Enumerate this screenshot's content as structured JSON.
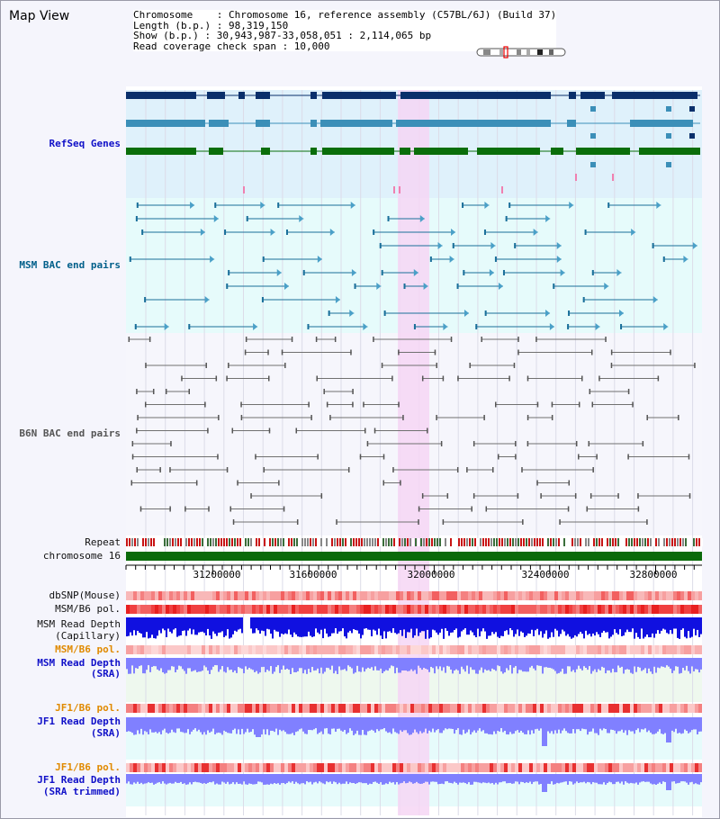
{
  "title": "Map View",
  "info": {
    "line1": "Chromosome    : Chromosome 16, reference assembly (C57BL/6J) (Build 37)",
    "line2": "Length (b.p.) : 98,319,150",
    "line3": "Show (b.p.) : 30,943,987-33,058,051 : 2,114,065 bp",
    "line4": "Read coverage check span : 10,000"
  },
  "tracks": {
    "refseq": "RefSeq Genes",
    "msm_bac": "MSM BAC end pairs",
    "b6n_bac": "B6N BAC end pairs",
    "repeat": "Repeat",
    "chromosome": "chromosome 16",
    "dbsnp": "dbSNP(Mouse)",
    "msm_b6_pol": "MSM/B6 pol.",
    "msm_read_depth": "MSM Read Depth",
    "capillary": "(Capillary)",
    "msm_b6_pol2": "MSM/B6 pol.",
    "msm_read_depth_sra": "MSM Read Depth",
    "sra": "(SRA)",
    "jf1_b6_pol": "JF1/B6 pol.",
    "jf1_read_depth": "JF1 Read Depth",
    "sra2": "(SRA)",
    "jf1_b6_pol2": "JF1/B6 pol.",
    "jf1_read_depth2": "JF1 Read Depth",
    "sra_trimmed": "(SRA trimmed)"
  },
  "axis": {
    "ticks": [
      "31200000",
      "31600000",
      "32000000",
      "32400000",
      "32800000"
    ]
  },
  "colors": {
    "refseq_bg": "#dff1fb",
    "msm_bg": "#e6fbfb",
    "highlight": "#f6d6f4",
    "gene_dark": "#0a2f6b",
    "gene_mid": "#3b8fb8",
    "gene_green": "#0a6e0a",
    "bac_teal": "#1a6f9a",
    "bac_gray": "#707070",
    "depth_blue": "#1010e0",
    "depth_light": "#8080ff",
    "chromosome": "#0a6a0a"
  },
  "chromosome_ideogram": "chromosome-16-ideogram"
}
